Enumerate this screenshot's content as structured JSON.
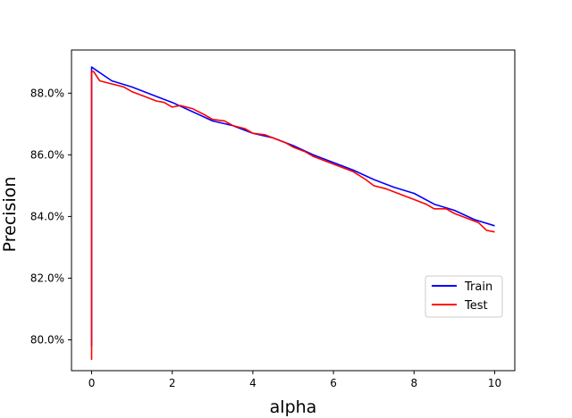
{
  "chart_data": {
    "type": "line",
    "title": "",
    "xlabel": "alpha",
    "ylabel": "Precision",
    "xlim": [
      -0.5,
      10.5
    ],
    "ylim": [
      79.0,
      89.4
    ],
    "xticks": [
      0,
      2,
      4,
      6,
      8,
      10
    ],
    "xtick_labels": [
      "0",
      "2",
      "4",
      "6",
      "8",
      "10"
    ],
    "yticks": [
      80.0,
      82.0,
      84.0,
      86.0,
      88.0
    ],
    "ytick_labels": [
      "80.0%",
      "82.0%",
      "84.0%",
      "86.0%",
      "88.0%"
    ],
    "grid": false,
    "legend_position": "center-right",
    "series": [
      {
        "name": "Train",
        "color": "#0000ff",
        "x": [
          0.0,
          0.0,
          0.05,
          0.5,
          1.0,
          1.5,
          2.0,
          2.5,
          3.0,
          3.5,
          4.0,
          4.5,
          5.0,
          5.5,
          6.0,
          6.5,
          7.0,
          7.5,
          8.0,
          8.5,
          9.0,
          9.5,
          10.0
        ],
        "y": [
          79.8,
          88.85,
          88.8,
          88.4,
          88.2,
          87.95,
          87.7,
          87.4,
          87.1,
          86.95,
          86.7,
          86.55,
          86.3,
          86.0,
          85.75,
          85.5,
          85.2,
          84.95,
          84.75,
          84.4,
          84.2,
          83.9,
          83.7
        ]
      },
      {
        "name": "Test",
        "color": "#ff0000",
        "x": [
          0.0,
          0.0,
          0.05,
          0.2,
          0.5,
          0.8,
          1.0,
          1.3,
          1.6,
          1.8,
          2.0,
          2.2,
          2.5,
          2.8,
          3.0,
          3.3,
          3.5,
          3.8,
          4.0,
          4.3,
          4.5,
          4.8,
          5.0,
          5.3,
          5.5,
          6.0,
          6.3,
          6.5,
          6.8,
          7.0,
          7.3,
          7.5,
          8.0,
          8.3,
          8.5,
          8.8,
          9.0,
          9.3,
          9.6,
          9.8,
          10.0
        ],
        "y": [
          79.35,
          88.7,
          88.7,
          88.4,
          88.3,
          88.2,
          88.05,
          87.9,
          87.75,
          87.7,
          87.55,
          87.6,
          87.5,
          87.3,
          87.15,
          87.1,
          86.95,
          86.85,
          86.7,
          86.65,
          86.55,
          86.4,
          86.25,
          86.1,
          85.95,
          85.7,
          85.55,
          85.45,
          85.2,
          85.0,
          84.9,
          84.8,
          84.55,
          84.4,
          84.25,
          84.25,
          84.1,
          83.95,
          83.8,
          83.55,
          83.5
        ]
      }
    ]
  },
  "colors": {
    "axes_edge": "#000000",
    "legend_border": "#cccccc"
  }
}
